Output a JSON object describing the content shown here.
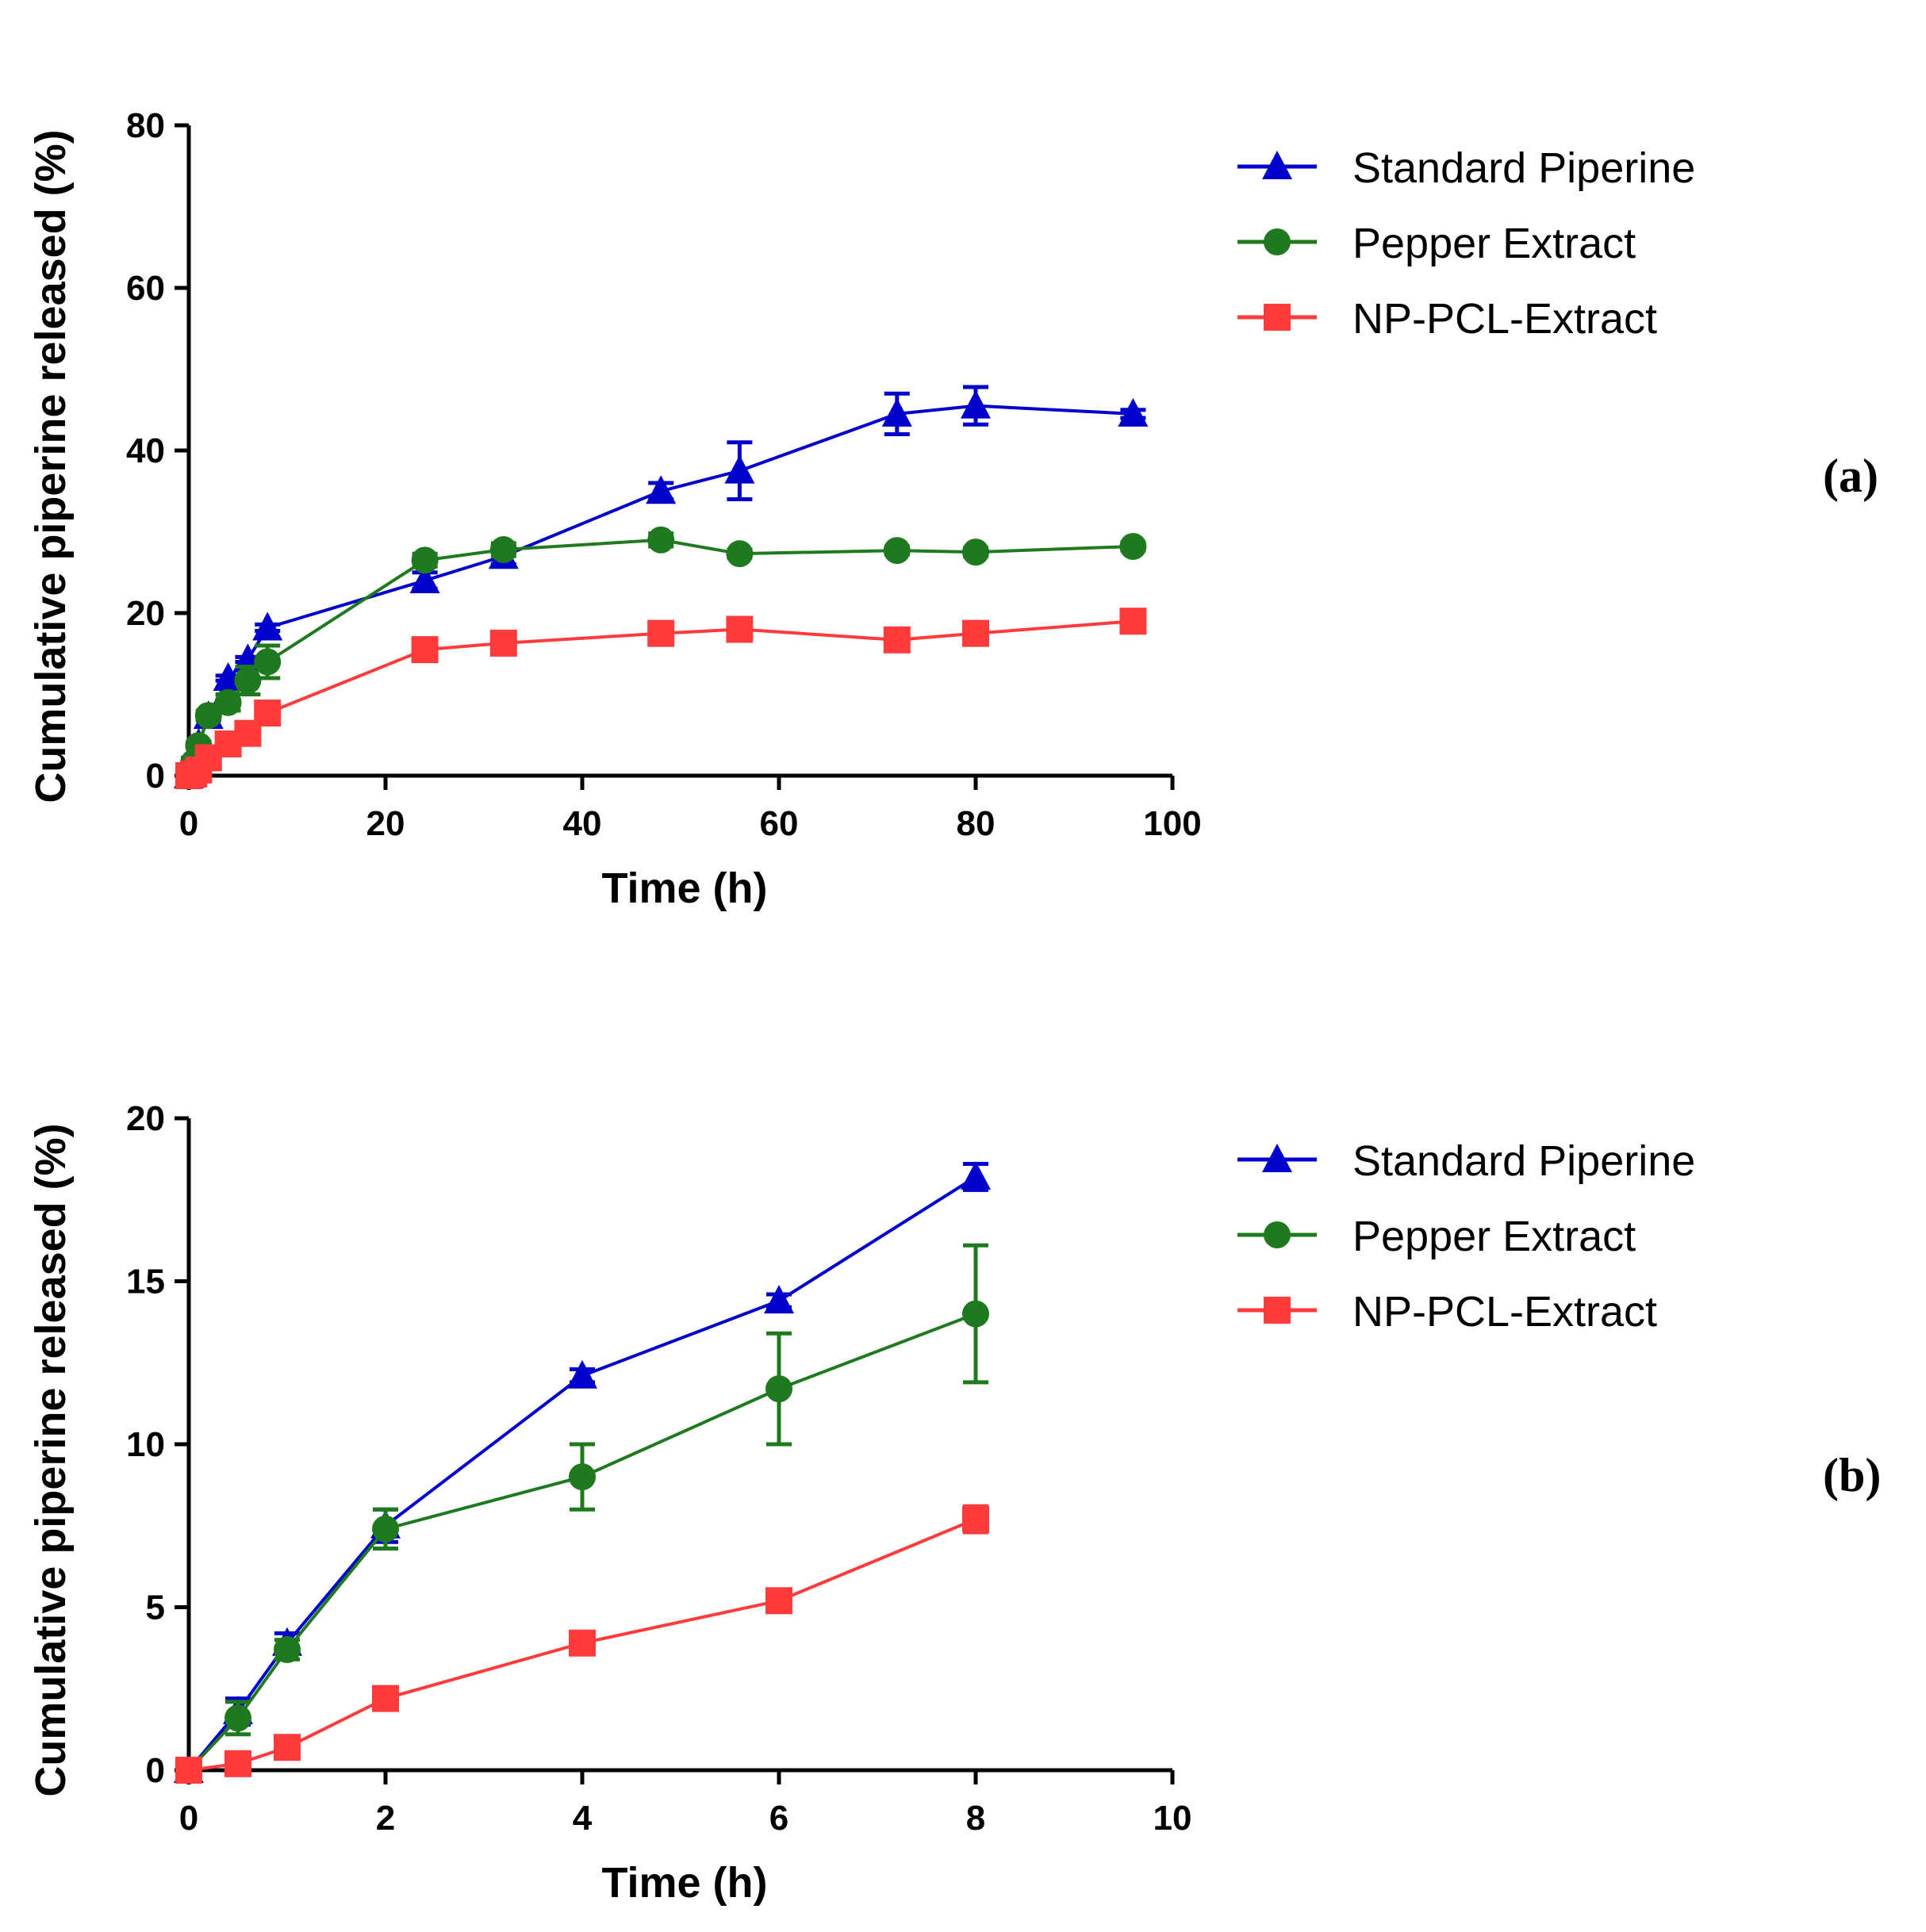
{
  "chart_data": [
    {
      "type": "line",
      "panel_label": "(a)",
      "xlabel": "Time (h)",
      "ylabel": "Cumulative piperine released (%)",
      "xlim": [
        0,
        100
      ],
      "ylim": [
        0,
        80
      ],
      "xticks": [
        0,
        20,
        40,
        60,
        80,
        100
      ],
      "yticks": [
        0,
        20,
        40,
        60,
        80
      ],
      "xtick_labels": [
        "0",
        "20",
        "40",
        "60",
        "80",
        "100"
      ],
      "ytick_labels": [
        "0",
        "20",
        "40",
        "60",
        "80"
      ],
      "legend_position": "top-right",
      "series": [
        {
          "name": "Standard Piperine",
          "color": "#0000cc",
          "marker": "triangle",
          "x": [
            0,
            0.5,
            1,
            2,
            4,
            6,
            8,
            24,
            32,
            48,
            56,
            72,
            80,
            96
          ],
          "y": [
            0,
            1.8,
            3.9,
            7.3,
            12.0,
            14.3,
            18.2,
            24.0,
            27.0,
            35.0,
            37.5,
            44.5,
            45.5,
            44.5
          ],
          "err": [
            0,
            0.4,
            0.3,
            0.5,
            0.3,
            0.3,
            0.4,
            1.0,
            1.0,
            1.0,
            3.5,
            2.5,
            2.3,
            0.5
          ]
        },
        {
          "name": "Pepper Extract",
          "color": "#1f7a1f",
          "marker": "circle",
          "x": [
            0,
            0.5,
            1,
            2,
            4,
            6,
            8,
            24,
            32,
            48,
            56,
            72,
            80,
            96
          ],
          "y": [
            0,
            1.6,
            3.7,
            7.4,
            9.0,
            11.7,
            14.0,
            26.5,
            27.8,
            29.0,
            27.3,
            27.7,
            27.5,
            28.2
          ],
          "err": [
            0,
            0.5,
            0.3,
            0.6,
            1.0,
            1.7,
            2.0,
            0.8,
            0.8,
            0.8,
            0.5,
            0.5,
            0.5,
            0.5
          ]
        },
        {
          "name": "NP-PCL-Extract",
          "color": "#ff3b3b",
          "marker": "square",
          "x": [
            0,
            0.5,
            1,
            2,
            4,
            6,
            8,
            24,
            32,
            48,
            56,
            72,
            80,
            96
          ],
          "y": [
            0,
            0.2,
            0.7,
            2.2,
            3.9,
            5.2,
            7.7,
            15.5,
            16.3,
            17.5,
            18.0,
            16.7,
            17.5,
            19.0
          ],
          "err": [
            0,
            0.2,
            0.2,
            0.2,
            0.2,
            0.2,
            0.4,
            0.6,
            0.6,
            0.6,
            0.6,
            0.6,
            0.6,
            0.6
          ]
        }
      ]
    },
    {
      "type": "line",
      "panel_label": "(b)",
      "xlabel": "Time (h)",
      "ylabel": "Cumulative piperine released (%)",
      "xlim": [
        0,
        10
      ],
      "ylim": [
        0,
        20
      ],
      "xticks": [
        0,
        2,
        4,
        6,
        8,
        10
      ],
      "yticks": [
        0,
        5,
        10,
        15,
        20
      ],
      "xtick_labels": [
        "0",
        "2",
        "4",
        "6",
        "8",
        "10"
      ],
      "ytick_labels": [
        "0",
        "5",
        "10",
        "15",
        "20"
      ],
      "legend_position": "top-right",
      "series": [
        {
          "name": "Standard Piperine",
          "color": "#0000cc",
          "marker": "triangle",
          "x": [
            0,
            0.5,
            1,
            2,
            4,
            6,
            8
          ],
          "y": [
            0,
            1.8,
            3.9,
            7.5,
            12.1,
            14.4,
            18.2
          ],
          "err": [
            0,
            0.4,
            0.3,
            0.5,
            0.2,
            0.2,
            0.4
          ]
        },
        {
          "name": "Pepper Extract",
          "color": "#1f7a1f",
          "marker": "circle",
          "x": [
            0,
            0.5,
            1,
            2,
            4,
            6,
            8
          ],
          "y": [
            0,
            1.6,
            3.7,
            7.4,
            9.0,
            11.7,
            14.0
          ],
          "err": [
            0,
            0.5,
            0.3,
            0.6,
            1.0,
            1.7,
            2.1
          ]
        },
        {
          "name": "NP-PCL-Extract",
          "color": "#ff3b3b",
          "marker": "square",
          "x": [
            0,
            0.5,
            1,
            2,
            4,
            6,
            8
          ],
          "y": [
            0,
            0.2,
            0.7,
            2.2,
            3.9,
            5.2,
            7.7
          ],
          "err": [
            0,
            0.1,
            0.1,
            0.2,
            0.2,
            0.2,
            0.4
          ]
        }
      ]
    }
  ]
}
